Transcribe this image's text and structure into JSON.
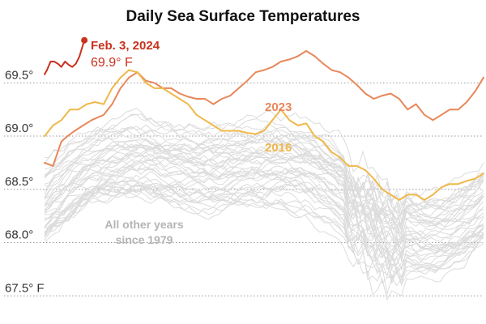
{
  "chart_data": {
    "type": "line",
    "title": "Daily Sea Surface Temperatures",
    "x_domain": [
      1,
      365
    ],
    "ylim": [
      67.35,
      70.05
    ],
    "y_ticks": [
      {
        "value": 69.5,
        "label": "69.5°"
      },
      {
        "value": 69.0,
        "label": "69.0°"
      },
      {
        "value": 68.5,
        "label": "68.5°"
      },
      {
        "value": 68.0,
        "label": "68.0°"
      },
      {
        "value": 67.5,
        "label": "67.5° F"
      }
    ],
    "grid": true,
    "series": [
      {
        "name": "2023",
        "color": "#e8875a",
        "label": "2023",
        "x": [
          1,
          8,
          15,
          20,
          26,
          33,
          40,
          50,
          57,
          64,
          71,
          78,
          85,
          92,
          99,
          106,
          113,
          120,
          127,
          134,
          141,
          148,
          155,
          162,
          169,
          176,
          183,
          190,
          197,
          204,
          211,
          218,
          225,
          232,
          239,
          246,
          253,
          260,
          267,
          274,
          281,
          288,
          295,
          302,
          309,
          316,
          323,
          330,
          337,
          344,
          351,
          358,
          365
        ],
        "values": [
          68.75,
          68.72,
          68.95,
          69.0,
          69.05,
          69.1,
          69.15,
          69.2,
          69.3,
          69.45,
          69.55,
          69.6,
          69.52,
          69.5,
          69.45,
          69.45,
          69.4,
          69.37,
          69.35,
          69.35,
          69.3,
          69.35,
          69.38,
          69.45,
          69.52,
          69.6,
          69.62,
          69.65,
          69.7,
          69.72,
          69.75,
          69.8,
          69.75,
          69.68,
          69.62,
          69.6,
          69.55,
          69.48,
          69.4,
          69.35,
          69.38,
          69.4,
          69.35,
          69.25,
          69.3,
          69.2,
          69.15,
          69.2,
          69.25,
          69.25,
          69.32,
          69.42,
          69.55
        ]
      },
      {
        "name": "2016",
        "color": "#f0b84a",
        "label": "2016",
        "x": [
          1,
          8,
          15,
          22,
          29,
          36,
          43,
          50,
          57,
          64,
          71,
          78,
          85,
          92,
          99,
          106,
          113,
          120,
          127,
          134,
          141,
          148,
          155,
          162,
          169,
          176,
          183,
          190,
          197,
          204,
          211,
          218,
          225,
          232,
          239,
          246,
          253,
          260,
          267,
          274,
          281,
          288,
          295,
          302,
          309,
          316,
          323,
          330,
          337,
          344,
          351,
          358,
          365
        ],
        "values": [
          69.0,
          69.1,
          69.15,
          69.25,
          69.25,
          69.3,
          69.32,
          69.3,
          69.45,
          69.55,
          69.62,
          69.6,
          69.5,
          69.45,
          69.45,
          69.4,
          69.35,
          69.3,
          69.2,
          69.15,
          69.1,
          69.05,
          69.05,
          69.05,
          69.03,
          69.02,
          69.05,
          69.15,
          69.25,
          69.15,
          69.1,
          69.12,
          69.0,
          68.95,
          68.85,
          68.8,
          68.72,
          68.72,
          68.68,
          68.6,
          68.5,
          68.45,
          68.4,
          68.45,
          68.45,
          68.4,
          68.45,
          68.52,
          68.55,
          68.55,
          68.58,
          68.6,
          68.65
        ]
      },
      {
        "name": "2024",
        "color": "#c8321e",
        "label": "",
        "x": [
          1,
          3,
          6,
          9,
          12,
          15,
          18,
          21,
          24,
          27,
          30,
          34
        ],
        "values": [
          69.58,
          69.62,
          69.7,
          69.7,
          69.68,
          69.65,
          69.7,
          69.67,
          69.65,
          69.68,
          69.75,
          69.9
        ]
      }
    ],
    "annotations": [
      {
        "text": "Feb. 3, 2024",
        "color": "#c8321e"
      },
      {
        "text": "69.9° F",
        "color": "#c8321e"
      },
      {
        "text": "All other years",
        "color": "#b5b5b5"
      },
      {
        "text": "since 1979",
        "color": "#b5b5b5"
      }
    ],
    "background_series_note": "All other years since 1979"
  }
}
